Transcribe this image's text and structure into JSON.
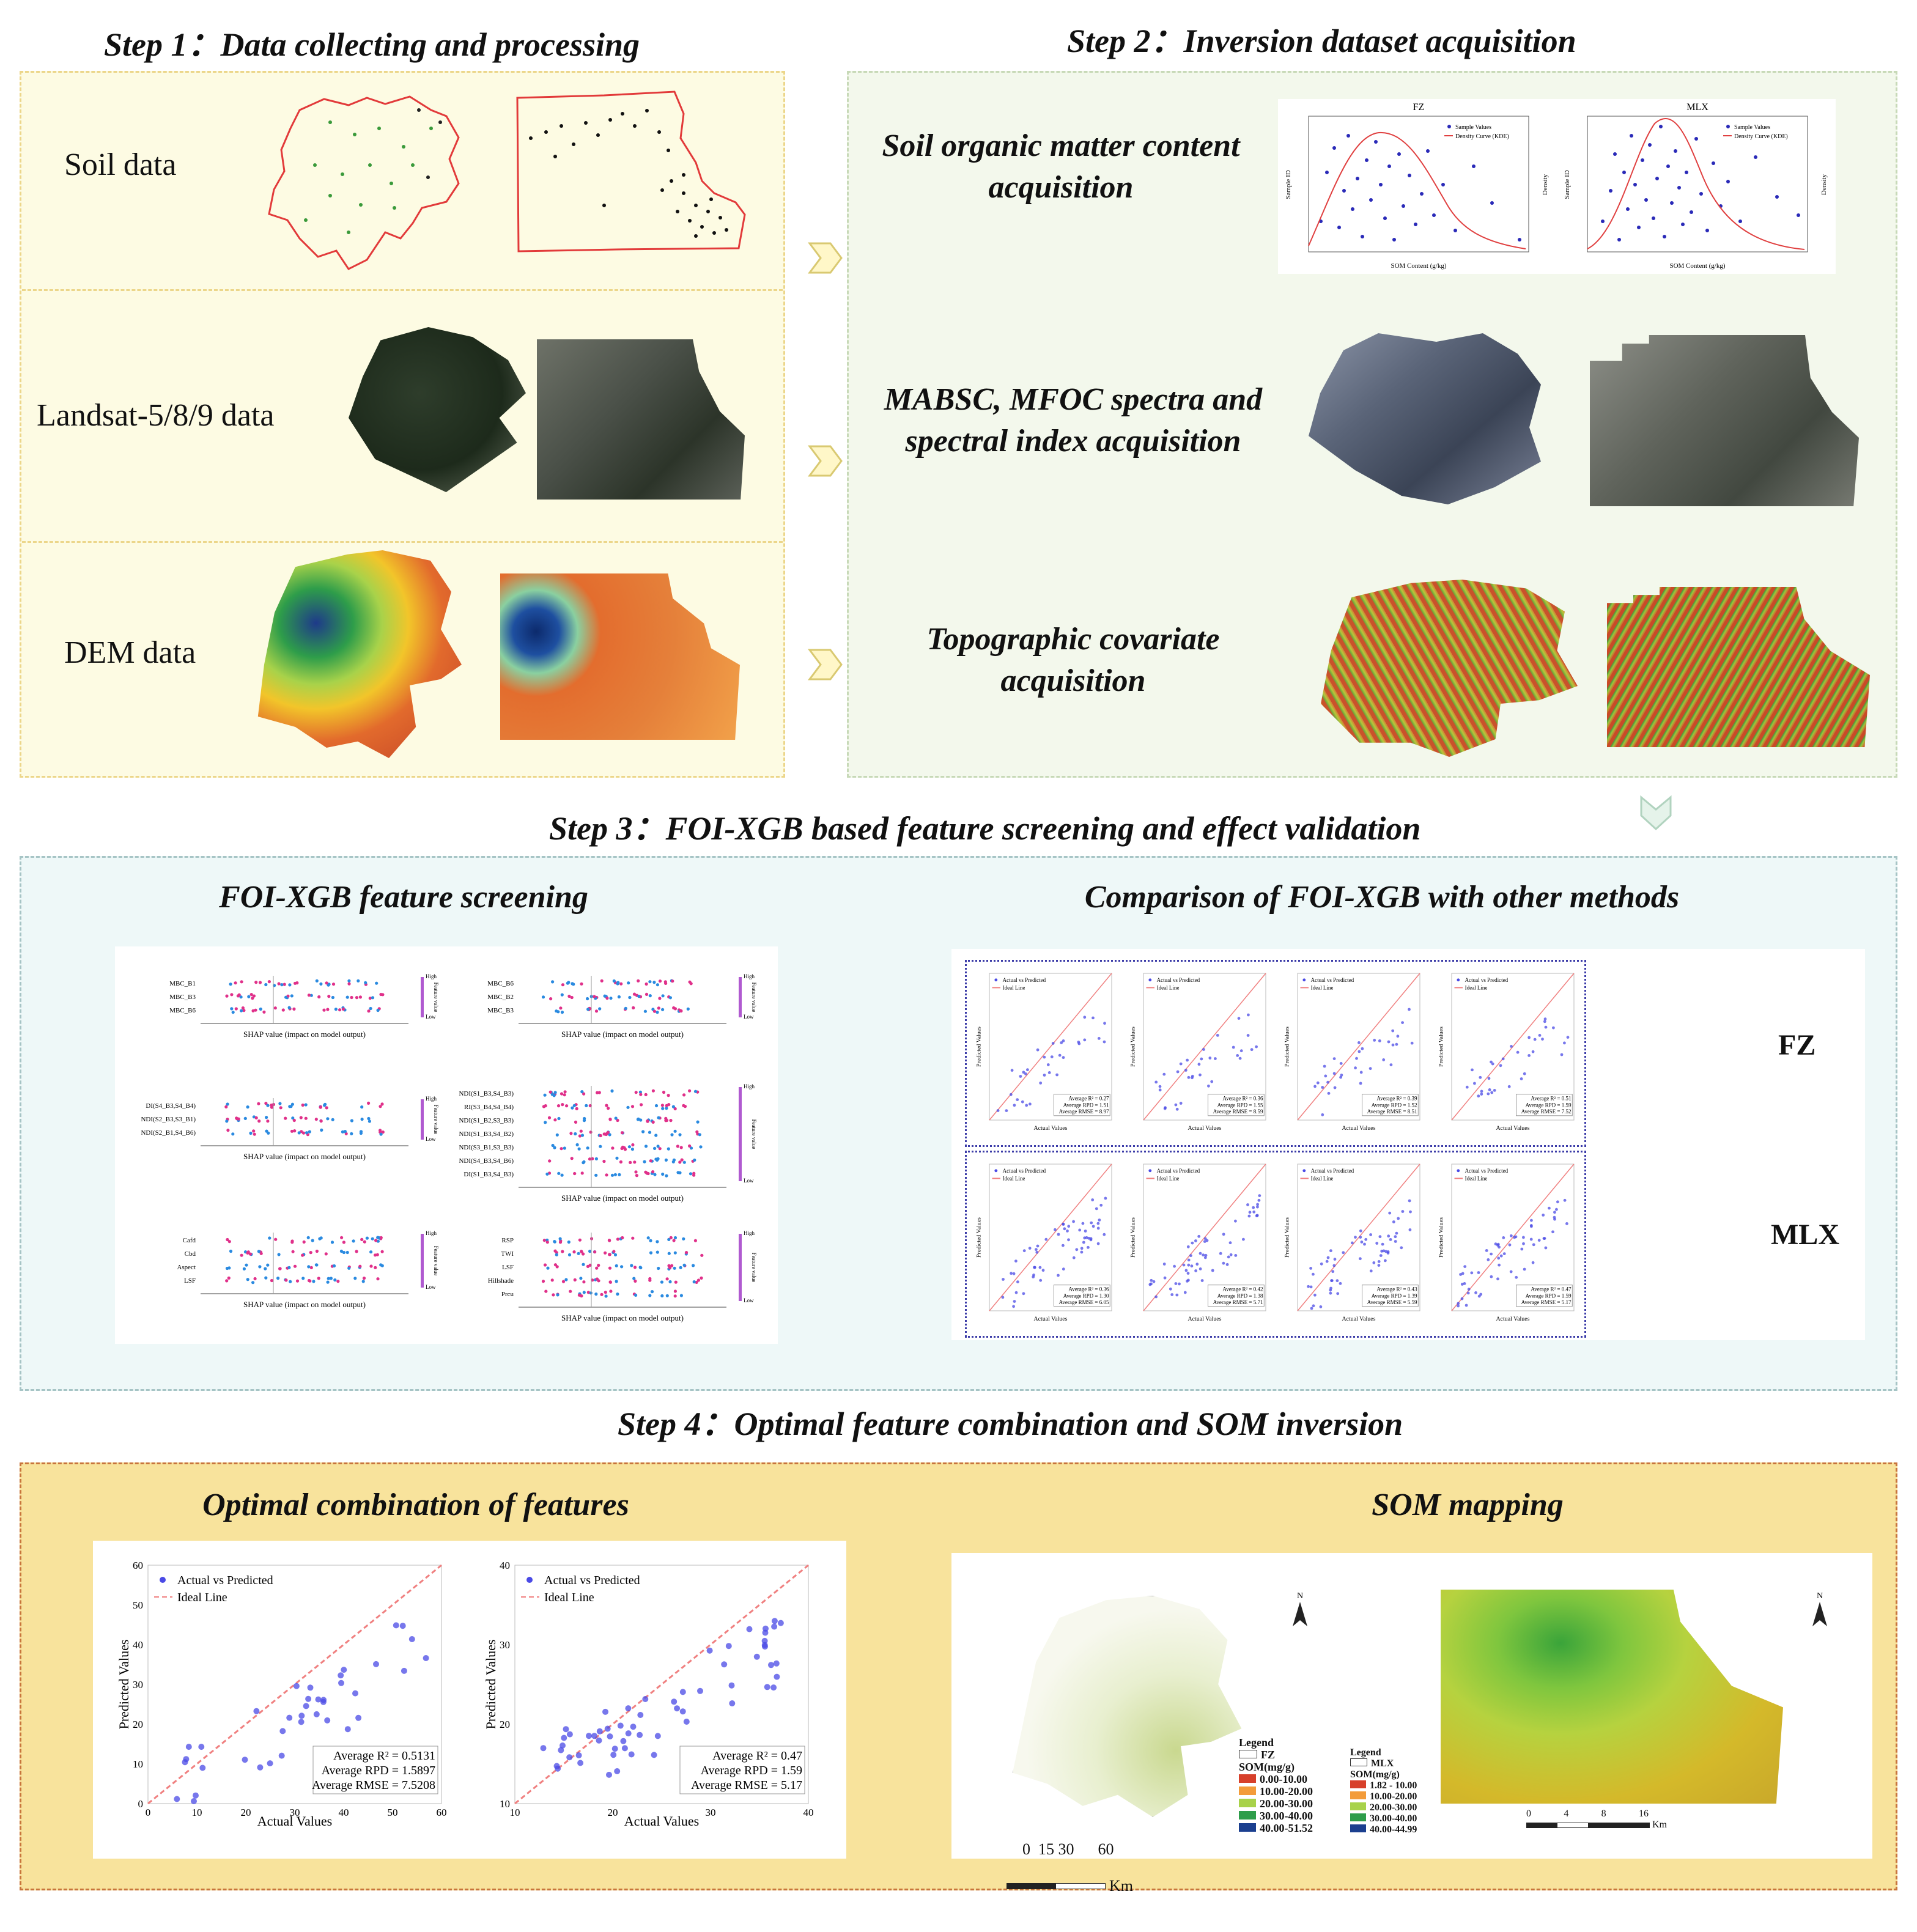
{
  "steps": {
    "step1": "Step 1：Data collecting and processing",
    "step2": "Step 2：Inversion  dataset acquisition",
    "step3": "Step 3：FOI-XGB based feature screening and effect validation",
    "step4": "Step 4：Optimal feature combination and SOM inversion"
  },
  "step1": {
    "soil_label": "Soil data",
    "landsat_label": "Landsat-5/8/9 data",
    "dem_label": "DEM data"
  },
  "step2": {
    "som_title_line1": "Soil organic matter content",
    "som_title_line2": "acquisition",
    "spectra_title_line1": "MABSC, MFOC spectra and",
    "spectra_title_line2": "spectral index acquisition",
    "topo_title_line1": "Topographic covariate",
    "topo_title_line2": "acquisition",
    "density_charts": [
      {
        "title": "FZ",
        "legend_points": "Sample Values",
        "legend_curve": "Density Curve (KDE)",
        "xlabel": "SOM Content (g/kg)",
        "ylabel": "Sample ID",
        "y2label": "Density"
      },
      {
        "title": "MLX",
        "legend_points": "Sample Values",
        "legend_curve": "Density Curve (KDE)",
        "xlabel": "SOM Content (g/kg)",
        "ylabel": "Sample ID",
        "y2label": "Density"
      }
    ]
  },
  "step3": {
    "left_title": "FOI-XGB feature screening",
    "right_title": "Comparison of FOI-XGB with other methods",
    "shap_xlabel": "SHAP value (impact on model output)",
    "shap_colorbar_high": "High",
    "shap_colorbar_low": "Low",
    "shap_colorbar_label": "Feature value",
    "shap_plots": [
      {
        "features": [
          "MBC_B1",
          "MBC_B3",
          "MBC_B6"
        ]
      },
      {
        "features": [
          "MBC_B6",
          "MBC_B2",
          "MBC_B3"
        ]
      },
      {
        "features": [
          "DI(S4_B3,S4_B4)",
          "NDI(S2_B3,S3_B1)",
          "NDI(S2_B1,S4_B6)"
        ]
      },
      {
        "features": [
          "NDI(S1_B3,S4_B3)",
          "RI(S3_B4,S4_B4)",
          "NDI(S1_B2,S3_B3)",
          "NDI(S1_B3,S4_B2)",
          "NDI(S3_B1,S3_B3)",
          "NDI(S4_B3,S4_B6)",
          "DI(S1_B3,S4_B3)"
        ]
      },
      {
        "features": [
          "Cafd",
          "Cbd",
          "Aspect",
          "LSF"
        ]
      },
      {
        "features": [
          "RSP",
          "TWI",
          "LSF",
          "Hillshade",
          "Prcu"
        ]
      }
    ],
    "scatter_legend_points": "Actual vs Predicted",
    "scatter_legend_line": "Ideal Line",
    "scatter_xlabel": "Actual Values",
    "scatter_ylabel": "Predicted Values",
    "fz_label": "FZ",
    "mlx_label": "MLX",
    "fz_metrics": [
      {
        "r2": "Average R² = 0.27",
        "rpd": "Average RPD = 1.51",
        "rmse": "Average RMSE = 8.97"
      },
      {
        "r2": "Average R² = 0.36",
        "rpd": "Average RPD = 1.55",
        "rmse": "Average RMSE = 8.59"
      },
      {
        "r2": "Average R² = 0.39",
        "rpd": "Average RPD = 1.52",
        "rmse": "Average RMSE = 8.51"
      },
      {
        "r2": "Average R² = 0.51",
        "rpd": "Average RPD = 1.59",
        "rmse": "Average RMSE = 7.52"
      }
    ],
    "mlx_metrics": [
      {
        "r2": "Average R² = 0.36",
        "rpd": "Average RPD = 1.30",
        "rmse": "Average RMSE = 6.05"
      },
      {
        "r2": "Average R² = 0.42",
        "rpd": "Average RPD = 1.38",
        "rmse": "Average RMSE = 5.71"
      },
      {
        "r2": "Average R² = 0.43",
        "rpd": "Average RPD = 1.39",
        "rmse": "Average RMSE = 5.59"
      },
      {
        "r2": "Average R² = 0.47",
        "rpd": "Average RPD = 1.59",
        "rmse": "Average RMSE = 5.17"
      }
    ]
  },
  "step4": {
    "left_title": "Optimal combination of features",
    "right_title": "SOM mapping",
    "legend_points": "Actual vs Predicted",
    "legend_line": "Ideal Line",
    "xlabel": "Actual Values",
    "ylabel": "Predicted Values",
    "fz_chart": {
      "r2": "Average R² = 0.5131",
      "rpd": "Average RPD = 1.5897",
      "rmse": "Average RMSE = 7.5208",
      "yticks": [
        "0",
        "10",
        "20",
        "30",
        "40",
        "50",
        "60"
      ],
      "xticks": [
        "0",
        "10",
        "20",
        "30",
        "40",
        "50",
        "60"
      ]
    },
    "mlx_chart": {
      "r2": "Average R² = 0.47",
      "rpd": "Average RPD = 1.59",
      "rmse": "Average RMSE = 5.17",
      "yticks": [
        "10",
        "20",
        "30",
        "40"
      ],
      "xticks": [
        "10",
        "20",
        "30",
        "40"
      ]
    },
    "fz_map": {
      "legend_title": "Legend",
      "region": "FZ",
      "unit": "SOM(mg/g)",
      "classes": [
        "0.00-10.00",
        "10.00-20.00",
        "20.00-30.00",
        "30.00-40.00",
        "40.00-51.52"
      ],
      "scale": "0  15 30      60",
      "scale_unit": "Km",
      "north": "N"
    },
    "mlx_map": {
      "legend_title": "Legend",
      "region": "MLX",
      "unit": "SOM(mg/g)",
      "classes": [
        "1.82 - 10.00",
        "10.00-20.00",
        "20.00-30.00",
        "30.00-40.00",
        "40.00-44.99"
      ],
      "scale_ticks": [
        "0",
        "4",
        "8",
        "16"
      ],
      "scale_unit": "Km",
      "north": "N"
    }
  },
  "colors": {
    "panel1_bg": "#fdfbe3",
    "panel2_bg": "#f3f8ec",
    "panel3_bg": "#eef8f8",
    "panel4_bg": "#f8e39c",
    "scatter_points": "#4a4ae6",
    "ideal_line": "#f08080",
    "boundary_red": "#e23a3a",
    "legend_classes": [
      "#d7402b",
      "#f39c3a",
      "#a8d24a",
      "#2e9d4a",
      "#1b3f8f"
    ]
  }
}
